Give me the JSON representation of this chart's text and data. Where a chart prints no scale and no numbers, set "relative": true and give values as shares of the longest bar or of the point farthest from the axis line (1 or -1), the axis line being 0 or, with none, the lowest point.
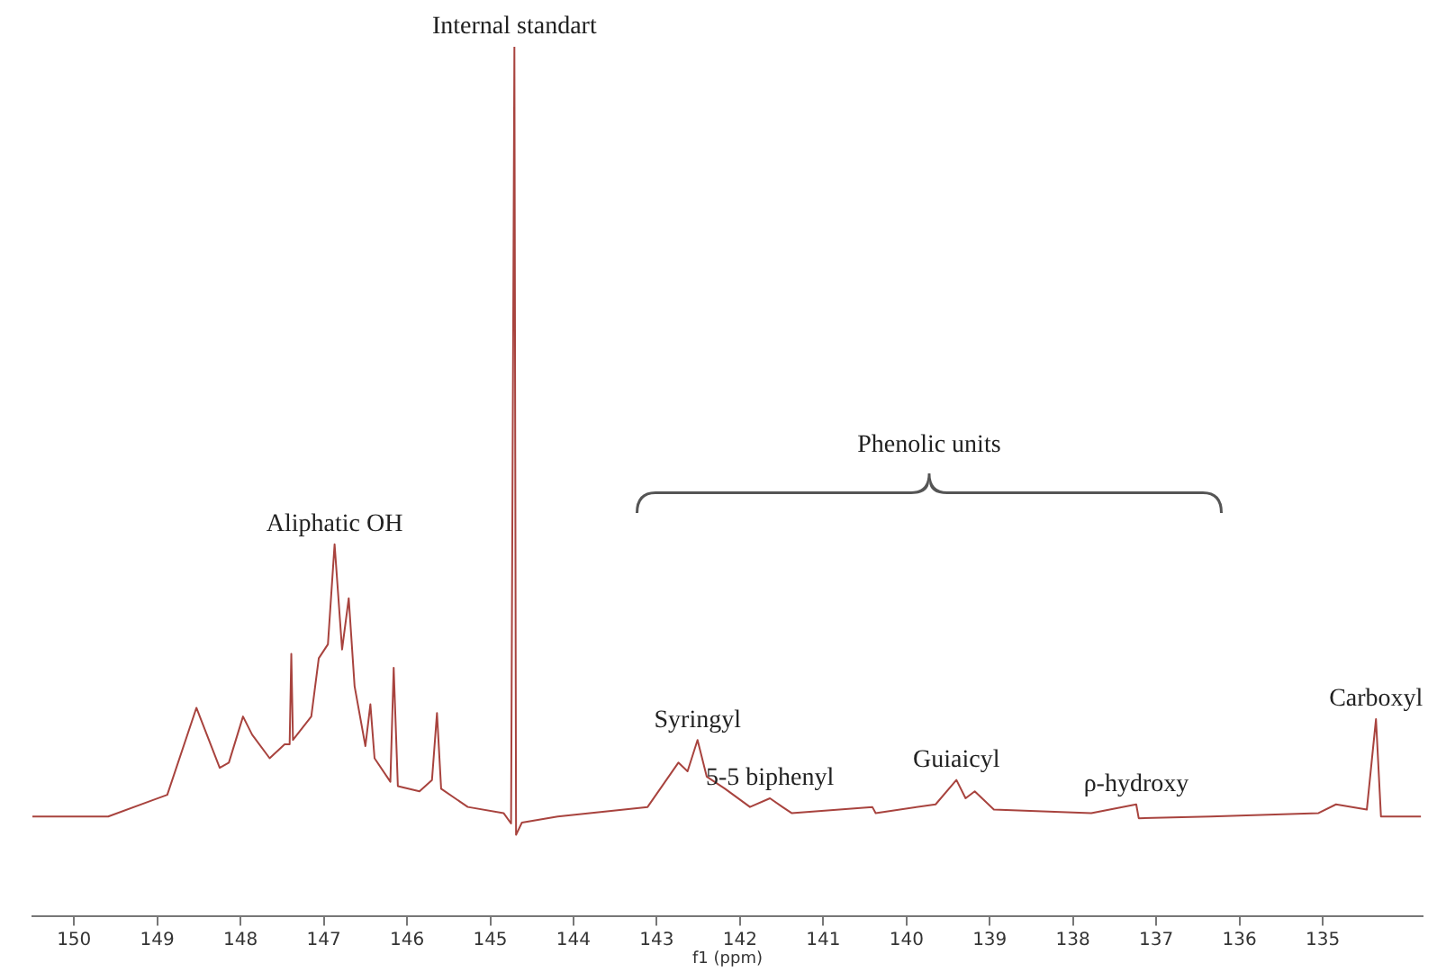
{
  "chart_data": {
    "type": "line",
    "relative": true,
    "xlabel": "f1 (ppm)",
    "xlim": [
      150.5,
      133.8
    ],
    "xticks": [
      150,
      149,
      148,
      147,
      146,
      145,
      144,
      143,
      142,
      141,
      140,
      139,
      138,
      137,
      136,
      135
    ],
    "x": [
      150.5,
      149.59,
      149.05,
      148.88,
      148.53,
      148.25,
      148.14,
      147.97,
      147.86,
      147.65,
      147.47,
      147.41,
      147.39,
      147.37,
      147.15,
      147.06,
      146.95,
      146.87,
      146.78,
      146.7,
      146.63,
      146.5,
      146.44,
      146.39,
      146.2,
      146.16,
      146.11,
      145.85,
      145.7,
      145.64,
      145.59,
      145.27,
      144.84,
      144.75,
      144.71,
      144.69,
      144.62,
      144.19,
      143.11,
      142.74,
      142.63,
      142.51,
      142.4,
      142.18,
      141.88,
      141.64,
      141.49,
      141.38,
      140.41,
      140.37,
      139.65,
      139.4,
      139.29,
      139.18,
      138.95,
      137.78,
      137.24,
      137.21,
      136.35,
      135.05,
      134.84,
      134.47,
      134.36,
      134.3,
      133.82
    ],
    "series": [
      {
        "color": "#a8433e",
        "values": [
          0.115,
          0.115,
          0.134,
          0.14,
          0.24,
          0.171,
          0.177,
          0.23,
          0.209,
          0.182,
          0.198,
          0.198,
          0.302,
          0.203,
          0.23,
          0.297,
          0.313,
          0.428,
          0.307,
          0.366,
          0.265,
          0.196,
          0.244,
          0.182,
          0.155,
          0.286,
          0.15,
          0.144,
          0.157,
          0.234,
          0.147,
          0.126,
          0.119,
          0.107,
          1,
          0.094,
          0.108,
          0.115,
          0.126,
          0.177,
          0.167,
          0.203,
          0.161,
          0.147,
          0.126,
          0.136,
          0.126,
          0.119,
          0.126,
          0.119,
          0.129,
          0.157,
          0.136,
          0.144,
          0.123,
          0.119,
          0.129,
          0.113,
          0.115,
          0.119,
          0.129,
          0.123,
          0.227,
          0.115,
          0.115
        ]
      }
    ],
    "annotations": [
      {
        "text": "Internal standart",
        "x": 144.71,
        "y": 1
      },
      {
        "text": "Aliphatic OH",
        "x": 146.87,
        "y": 0.428
      },
      {
        "text": "Syringyl",
        "x": 142.51,
        "y": 0.203
      },
      {
        "text": "5-5 biphenyl",
        "x": 141.64,
        "y": 0.136
      },
      {
        "text": "Guiaicyl",
        "x": 139.4,
        "y": 0.157
      },
      {
        "text": "ρ-hydroxy",
        "x": 137.24,
        "y": 0.129
      },
      {
        "text": "Carboxyl",
        "x": 134.36,
        "y": 0.227
      },
      "Phenolic units"
    ],
    "grid": false,
    "legend": false,
    "marker": "none",
    "line_style": "solid"
  }
}
